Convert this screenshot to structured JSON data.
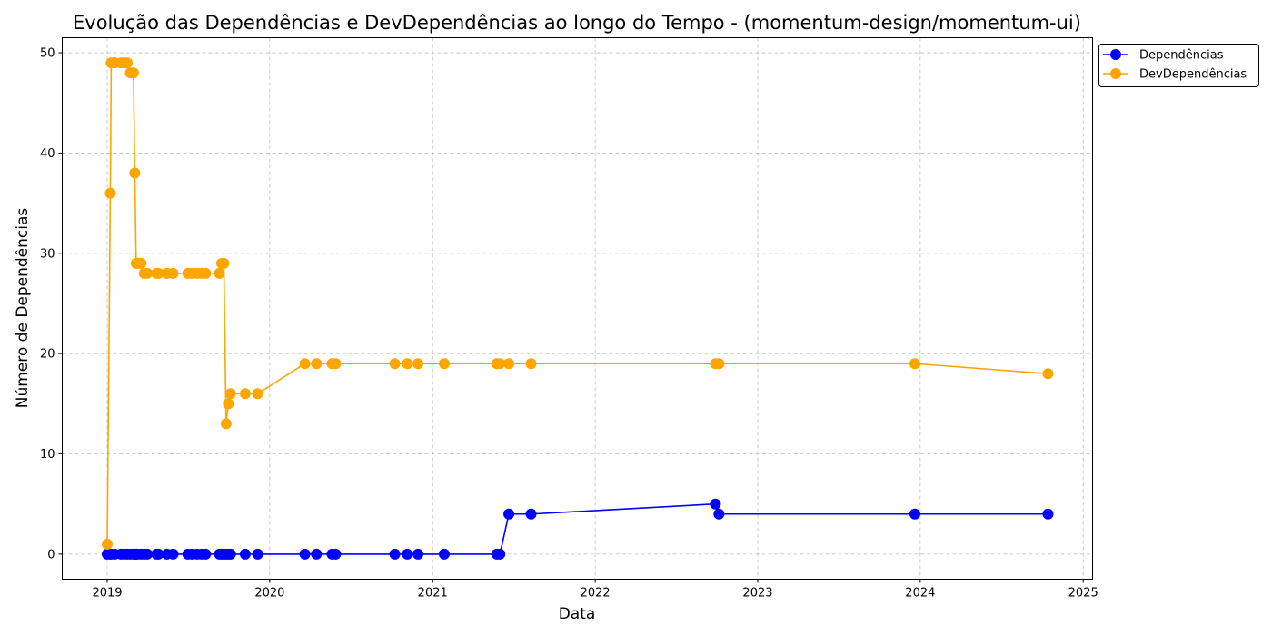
{
  "chart_data": {
    "type": "line",
    "title": "Evolução das Dependências e DevDependências ao longo do Tempo - (momentum-design/momentum-ui)",
    "xlabel": "Data",
    "ylabel": "Número de Dependências",
    "x_type": "date",
    "xlim": [
      "2018-09-22",
      "2025-01-22"
    ],
    "ylim": [
      -2.5,
      51.5
    ],
    "x_ticks": [
      {
        "date": "2019-01-01",
        "label": "2019"
      },
      {
        "date": "2020-01-01",
        "label": "2020"
      },
      {
        "date": "2021-01-01",
        "label": "2021"
      },
      {
        "date": "2022-01-01",
        "label": "2022"
      },
      {
        "date": "2023-01-01",
        "label": "2023"
      },
      {
        "date": "2024-01-01",
        "label": "2024"
      },
      {
        "date": "2025-01-01",
        "label": "2025"
      }
    ],
    "y_ticks": [
      0,
      10,
      20,
      30,
      40,
      50
    ],
    "grid": true,
    "legend_position": "upper-right-outside",
    "x": [
      "2019-01-01",
      "2019-01-08",
      "2019-01-10",
      "2019-01-18",
      "2019-02-01",
      "2019-02-08",
      "2019-02-15",
      "2019-02-22",
      "2019-03-01",
      "2019-03-04",
      "2019-03-07",
      "2019-03-10",
      "2019-03-18",
      "2019-03-25",
      "2019-04-01",
      "2019-04-22",
      "2019-04-26",
      "2019-05-15",
      "2019-05-29",
      "2019-07-01",
      "2019-07-10",
      "2019-07-22",
      "2019-08-01",
      "2019-08-10",
      "2019-09-10",
      "2019-09-15",
      "2019-09-20",
      "2019-09-25",
      "2019-09-30",
      "2019-10-05",
      "2019-11-07",
      "2019-12-05",
      "2020-03-20",
      "2020-04-15",
      "2020-05-20",
      "2020-05-28",
      "2020-10-08",
      "2020-11-05",
      "2020-11-29",
      "2021-01-27",
      "2021-05-25",
      "2021-06-01",
      "2021-06-21",
      "2021-08-10",
      "2022-09-28",
      "2022-10-06",
      "2023-12-20",
      "2024-10-14"
    ],
    "series": [
      {
        "name": "Dependências",
        "color": "#0000ff",
        "values": [
          0,
          0,
          0,
          0,
          0,
          0,
          0,
          0,
          0,
          0,
          0,
          0,
          0,
          0,
          0,
          0,
          0,
          0,
          0,
          0,
          0,
          0,
          0,
          0,
          0,
          0,
          0,
          0,
          0,
          0,
          0,
          0,
          0,
          0,
          0,
          0,
          0,
          0,
          0,
          0,
          0,
          0,
          4,
          4,
          5,
          4,
          4,
          4
        ]
      },
      {
        "name": "DevDependências",
        "color": "#ffa500",
        "values": [
          1,
          36,
          49,
          49,
          49,
          49,
          49,
          48,
          48,
          38,
          29,
          29,
          29,
          28,
          28,
          28,
          28,
          28,
          28,
          28,
          28,
          28,
          28,
          28,
          28,
          29,
          29,
          13,
          15,
          16,
          16,
          16,
          19,
          19,
          19,
          19,
          19,
          19,
          19,
          19,
          19,
          19,
          19,
          19,
          19,
          19,
          19,
          18
        ]
      }
    ]
  }
}
